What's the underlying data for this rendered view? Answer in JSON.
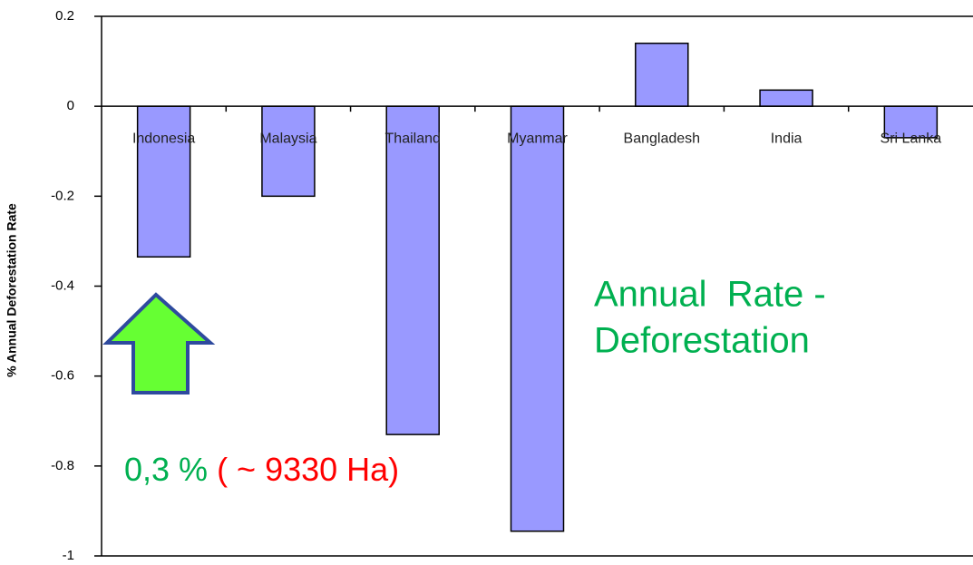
{
  "chart_data": {
    "type": "bar",
    "categories": [
      "Indonesia",
      "Malaysia",
      "Thailand",
      "Myanmar",
      "Bangladesh",
      "India",
      "Sri Lanka"
    ],
    "values": [
      -0.335,
      -0.2,
      -0.73,
      -0.945,
      0.14,
      0.036,
      -0.07
    ],
    "color": "#9999ff",
    "ylabel": "% Annual Deforestation Rate",
    "ylim": [
      -1,
      0.2
    ],
    "yticks": [
      0.2,
      0,
      -0.2,
      -0.4,
      -0.6,
      -0.8,
      -1
    ],
    "grid": false,
    "annotations": [
      "Annual  Rate -",
      "Deforestation",
      "0,3 %",
      "( ~ 9330 Ha)"
    ]
  }
}
